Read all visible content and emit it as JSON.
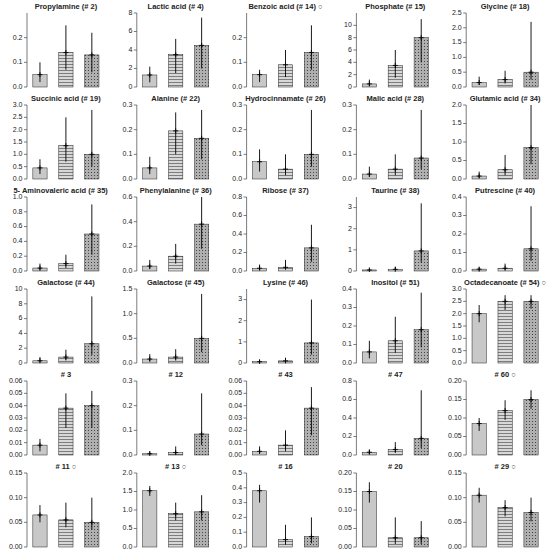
{
  "chart_data": [
    {
      "type": "bar",
      "title": "Propylamine (# 2)",
      "categories": [
        null,
        null,
        null
      ],
      "values": [
        0.05,
        0.14,
        0.13
      ],
      "lo": [
        0.02,
        0.07,
        0.06
      ],
      "hi": [
        0.1,
        0.25,
        0.22
      ],
      "colors": [
        "#c8c8c8",
        "#d8d8d8",
        "#b0b0b0"
      ],
      "ylim": [
        0,
        0.3
      ],
      "yticks": [
        {
          "value": 0,
          "label": "0.0"
        },
        0.1,
        0.2
      ],
      "tick_labels": "y"
    },
    {
      "type": "bar",
      "title": "Lactic acid (# 4)",
      "categories": [
        null,
        null,
        null
      ],
      "values": [
        1.3,
        3.5,
        4.5
      ],
      "lo": [
        0.5,
        1.5,
        2.0
      ],
      "hi": [
        2.2,
        5.2,
        7.5
      ],
      "colors": [
        "#c8c8c8",
        "#d8d8d8",
        "#b0b0b0"
      ],
      "ylim": [
        0,
        8
      ],
      "yticks": [
        0,
        2,
        4,
        6,
        8
      ],
      "tick_labels": "y"
    },
    {
      "type": "bar",
      "title": "Benzoic acid (# 14) ○",
      "categories": [
        null,
        null,
        null
      ],
      "values": [
        0.05,
        0.09,
        0.14
      ],
      "lo": [
        0.02,
        0.04,
        0.07
      ],
      "hi": [
        0.07,
        0.15,
        0.25
      ],
      "colors": [
        "#c8c8c8",
        "#d8d8d8",
        "#b0b0b0"
      ],
      "ylim": [
        0,
        0.3
      ],
      "yticks": [
        {
          "value": 0,
          "label": "0.0"
        },
        0.1,
        0.2
      ],
      "tick_labels": "y"
    },
    {
      "type": "bar",
      "title": "Phosphate (# 15)",
      "categories": [
        null,
        null,
        null
      ],
      "values": [
        0.5,
        3.5,
        8.0
      ],
      "lo": [
        0.2,
        1.5,
        4.0
      ],
      "hi": [
        1.2,
        6.0,
        11.0
      ],
      "colors": [
        "#c8c8c8",
        "#d8d8d8",
        "#b0b0b0"
      ],
      "ylim": [
        0,
        12
      ],
      "yticks": [
        0,
        2,
        4,
        6,
        8,
        10
      ],
      "tick_labels": "y"
    },
    {
      "type": "bar",
      "title": "Glycine (# 18)",
      "categories": [
        null,
        null,
        null
      ],
      "values": [
        0.15,
        0.25,
        0.5
      ],
      "lo": [
        0.07,
        0.12,
        0.25
      ],
      "hi": [
        0.35,
        0.55,
        2.2
      ],
      "colors": [
        "#c8c8c8",
        "#d8d8d8",
        "#b0b0b0"
      ],
      "ylim": [
        0,
        2.5
      ],
      "yticks": [
        {
          "value": 0,
          "label": "0.0"
        },
        0.5,
        {
          "value": 1.0,
          "label": "1.0"
        },
        1.5,
        {
          "value": 2.0,
          "label": "2.0"
        },
        2.5
      ],
      "tick_labels": "y"
    },
    {
      "type": "bar",
      "title": "Succinic acid (# 19)",
      "categories": [
        null,
        null,
        null
      ],
      "values": [
        0.45,
        1.35,
        1.0
      ],
      "lo": [
        0.2,
        0.7,
        0.5
      ],
      "hi": [
        0.8,
        2.5,
        2.8
      ],
      "colors": [
        "#c8c8c8",
        "#d8d8d8",
        "#b0b0b0"
      ],
      "ylim": [
        0,
        3.0
      ],
      "yticks": [
        {
          "value": 0,
          "label": "0.0"
        },
        0.5,
        {
          "value": 1.0,
          "label": "1.0"
        },
        1.5,
        {
          "value": 2.0,
          "label": "2.0"
        },
        2.5,
        {
          "value": 3.0,
          "label": "3.0"
        }
      ],
      "tick_labels": "y"
    },
    {
      "type": "bar",
      "title": "Alanine (# 22)",
      "categories": [
        null,
        null,
        null
      ],
      "values": [
        0.045,
        0.195,
        0.165
      ],
      "lo": [
        0.02,
        0.1,
        0.08
      ],
      "hi": [
        0.09,
        0.27,
        0.28
      ],
      "colors": [
        "#c8c8c8",
        "#d8d8d8",
        "#b0b0b0"
      ],
      "ylim": [
        0,
        0.3
      ],
      "yticks": [
        {
          "value": 0,
          "label": "0.0"
        },
        0.1,
        0.2,
        0.3
      ],
      "tick_labels": "y"
    },
    {
      "type": "bar",
      "title": "Hydrocinnamate (# 26)",
      "categories": [
        null,
        null,
        null
      ],
      "values": [
        0.07,
        0.04,
        0.1
      ],
      "lo": [
        0.03,
        0.015,
        0.05
      ],
      "hi": [
        0.12,
        0.1,
        0.28
      ],
      "colors": [
        "#c8c8c8",
        "#d8d8d8",
        "#b0b0b0"
      ],
      "ylim": [
        0,
        0.3
      ],
      "yticks": [
        {
          "value": 0,
          "label": "0.0"
        },
        0.1,
        0.2,
        0.3
      ],
      "tick_labels": "y"
    },
    {
      "type": "bar",
      "title": "Malic acid (# 28)",
      "categories": [
        null,
        null,
        null
      ],
      "values": [
        0.02,
        0.04,
        0.085
      ],
      "lo": [
        0.008,
        0.015,
        0.04
      ],
      "hi": [
        0.05,
        0.1,
        0.28
      ],
      "colors": [
        "#c8c8c8",
        "#d8d8d8",
        "#b0b0b0"
      ],
      "ylim": [
        0,
        0.3
      ],
      "yticks": [
        {
          "value": 0,
          "label": "0.0"
        },
        0.1,
        0.2,
        0.3
      ],
      "tick_labels": "y"
    },
    {
      "type": "bar",
      "title": "Glutamic acid (# 34)",
      "categories": [
        null,
        null,
        null
      ],
      "values": [
        0.08,
        0.25,
        0.85
      ],
      "lo": [
        0.03,
        0.1,
        0.4
      ],
      "hi": [
        0.2,
        0.65,
        2.0
      ],
      "colors": [
        "#c8c8c8",
        "#d8d8d8",
        "#b0b0b0"
      ],
      "ylim": [
        0,
        2.0
      ],
      "yticks": [
        {
          "value": 0,
          "label": "0.0"
        },
        0.5,
        {
          "value": 1.0,
          "label": "1.0"
        },
        1.5,
        {
          "value": 2.0,
          "label": "2.0"
        }
      ],
      "tick_labels": "y"
    },
    {
      "type": "bar",
      "title": "5- Aminovaleric acid (# 35)",
      "categories": [
        null,
        null,
        null
      ],
      "values": [
        0.04,
        0.1,
        0.5
      ],
      "lo": [
        0.01,
        0.04,
        0.22
      ],
      "hi": [
        0.1,
        0.22,
        0.9
      ],
      "colors": [
        "#c8c8c8",
        "#d8d8d8",
        "#b0b0b0"
      ],
      "ylim": [
        0,
        1.0
      ],
      "yticks": [
        {
          "value": 0,
          "label": "0.0"
        },
        0.2,
        0.4,
        0.6,
        0.8,
        {
          "value": 1.0,
          "label": "1.0"
        }
      ],
      "tick_labels": "y"
    },
    {
      "type": "bar",
      "title": "Phenylalanine (# 36)",
      "categories": [
        null,
        null,
        null
      ],
      "values": [
        0.04,
        0.12,
        0.38
      ],
      "lo": [
        0.015,
        0.06,
        0.18
      ],
      "hi": [
        0.09,
        0.22,
        0.6
      ],
      "colors": [
        "#c8c8c8",
        "#d8d8d8",
        "#b0b0b0"
      ],
      "ylim": [
        0,
        0.6
      ],
      "yticks": [
        {
          "value": 0,
          "label": "0.0"
        },
        0.2,
        0.4,
        0.6
      ],
      "tick_labels": "y"
    },
    {
      "type": "bar",
      "title": "Ribose (# 37)",
      "categories": [
        null,
        null,
        null
      ],
      "values": [
        0.03,
        0.04,
        0.25
      ],
      "lo": [
        0.01,
        0.02,
        0.1
      ],
      "hi": [
        0.07,
        0.12,
        0.5
      ],
      "colors": [
        "#c8c8c8",
        "#d8d8d8",
        "#b0b0b0"
      ],
      "ylim": [
        0,
        0.8
      ],
      "yticks": [
        {
          "value": 0,
          "label": "0.0"
        },
        0.2,
        0.4,
        0.6,
        0.8
      ],
      "tick_labels": "y"
    },
    {
      "type": "bar",
      "title": "Taurine (# 38)",
      "categories": [
        null,
        null,
        null
      ],
      "values": [
        0.05,
        0.08,
        0.95
      ],
      "lo": [
        0.02,
        0.03,
        0.4
      ],
      "hi": [
        0.12,
        0.2,
        3.2
      ],
      "colors": [
        "#c8c8c8",
        "#d8d8d8",
        "#b0b0b0"
      ],
      "ylim": [
        0,
        3.5
      ],
      "yticks": [
        0,
        1,
        2,
        3
      ],
      "tick_labels": "y"
    },
    {
      "type": "bar",
      "title": "Putrescine (# 40)",
      "categories": [
        null,
        null,
        null
      ],
      "values": [
        0.01,
        0.015,
        0.12
      ],
      "lo": [
        0.003,
        0.006,
        0.055
      ],
      "hi": [
        0.02,
        0.04,
        0.35
      ],
      "colors": [
        "#c8c8c8",
        "#d8d8d8",
        "#b0b0b0"
      ],
      "ylim": [
        0,
        0.4
      ],
      "yticks": [
        {
          "value": 0,
          "label": "0.0"
        },
        0.1,
        0.2,
        0.3,
        0.4
      ],
      "tick_labels": "y"
    },
    {
      "type": "bar",
      "title": "Galactose (# 44)",
      "categories": [
        null,
        null,
        null
      ],
      "values": [
        0.3,
        0.8,
        2.6
      ],
      "lo": [
        0.1,
        0.35,
        1.1
      ],
      "hi": [
        0.8,
        1.8,
        9.0
      ],
      "colors": [
        "#c8c8c8",
        "#d8d8d8",
        "#b0b0b0"
      ],
      "ylim": [
        0,
        10
      ],
      "yticks": [
        0,
        2,
        4,
        6,
        8,
        10
      ],
      "tick_labels": "y"
    },
    {
      "type": "bar",
      "title": "Galactose (# 45)",
      "categories": [
        null,
        null,
        null
      ],
      "values": [
        0.08,
        0.12,
        0.5
      ],
      "lo": [
        0.03,
        0.05,
        0.22
      ],
      "hi": [
        0.18,
        0.28,
        1.4
      ],
      "colors": [
        "#c8c8c8",
        "#d8d8d8",
        "#b0b0b0"
      ],
      "ylim": [
        0,
        1.5
      ],
      "yticks": [
        {
          "value": 0,
          "label": "0.0"
        },
        0.5,
        {
          "value": 1.0,
          "label": "1.0"
        },
        1.5
      ],
      "tick_labels": "y"
    },
    {
      "type": "bar",
      "title": "Lysine (# 46)",
      "categories": [
        null,
        null,
        null
      ],
      "values": [
        0.06,
        0.1,
        0.95
      ],
      "lo": [
        0.02,
        0.04,
        0.4
      ],
      "hi": [
        0.14,
        0.25,
        3.0
      ],
      "colors": [
        "#c8c8c8",
        "#d8d8d8",
        "#b0b0b0"
      ],
      "ylim": [
        0,
        3.5
      ],
      "yticks": [
        0,
        1,
        2,
        3
      ],
      "tick_labels": "y"
    },
    {
      "type": "bar",
      "title": "Inositol (# 51)",
      "categories": [
        null,
        null,
        null
      ],
      "values": [
        0.06,
        0.12,
        0.18
      ],
      "lo": [
        0.025,
        0.055,
        0.085
      ],
      "hi": [
        0.12,
        0.25,
        0.38
      ],
      "colors": [
        "#c8c8c8",
        "#d8d8d8",
        "#b0b0b0"
      ],
      "ylim": [
        0,
        0.4
      ],
      "yticks": [
        {
          "value": 0,
          "label": "0.0"
        },
        0.1,
        0.2,
        0.3,
        0.4
      ],
      "tick_labels": "y"
    },
    {
      "type": "bar",
      "title": "Octadecanoate (# 54) ○",
      "categories": [
        null,
        null,
        null
      ],
      "values": [
        2.0,
        2.5,
        2.5
      ],
      "lo": [
        1.65,
        2.15,
        2.2
      ],
      "hi": [
        2.35,
        2.75,
        2.75
      ],
      "colors": [
        "#c8c8c8",
        "#d8d8d8",
        "#b0b0b0"
      ],
      "ylim": [
        0,
        3.0
      ],
      "yticks": [
        {
          "value": 0,
          "label": "0.0"
        },
        0.5,
        {
          "value": 1.0,
          "label": "1.0"
        },
        1.5,
        {
          "value": 2.0,
          "label": "2.0"
        },
        2.5,
        {
          "value": 3.0,
          "label": "3.0"
        }
      ],
      "tick_labels": "y"
    },
    {
      "type": "bar",
      "title": "# 3",
      "categories": [
        null,
        null,
        null
      ],
      "values": [
        0.008,
        0.038,
        0.04
      ],
      "lo": [
        0.003,
        0.022,
        0.022
      ],
      "hi": [
        0.013,
        0.05,
        0.052
      ],
      "colors": [
        "#c8c8c8",
        "#d8d8d8",
        "#b0b0b0"
      ],
      "ylim": [
        0,
        0.06
      ],
      "yticks": [
        {
          "value": 0,
          "label": "0.00"
        },
        0.01,
        0.02,
        0.03,
        0.04,
        0.05,
        0.06
      ],
      "tick_labels": "y"
    },
    {
      "type": "bar",
      "title": "# 12",
      "categories": [
        null,
        null,
        null
      ],
      "values": [
        0.005,
        0.01,
        0.085
      ],
      "lo": [
        0.002,
        0.004,
        0.04
      ],
      "hi": [
        0.015,
        0.035,
        0.25
      ],
      "colors": [
        "#c8c8c8",
        "#d8d8d8",
        "#b0b0b0"
      ],
      "ylim": [
        0,
        0.3
      ],
      "yticks": [
        {
          "value": 0,
          "label": "0.0"
        },
        0.1,
        0.2,
        0.3
      ],
      "tick_labels": "y"
    },
    {
      "type": "bar",
      "title": "# 43",
      "categories": [
        null,
        null,
        null
      ],
      "values": [
        0.003,
        0.008,
        0.038
      ],
      "lo": [
        0.001,
        0.003,
        0.016
      ],
      "hi": [
        0.007,
        0.02,
        0.055
      ],
      "colors": [
        "#c8c8c8",
        "#d8d8d8",
        "#b0b0b0"
      ],
      "ylim": [
        0,
        0.06
      ],
      "yticks": [
        {
          "value": 0,
          "label": "0.00"
        },
        0.01,
        0.02,
        0.03,
        0.04,
        0.05,
        0.06
      ],
      "tick_labels": "y"
    },
    {
      "type": "bar",
      "title": "# 47",
      "categories": [
        null,
        null,
        null
      ],
      "values": [
        0.03,
        0.06,
        0.18
      ],
      "lo": [
        0.01,
        0.022,
        0.075
      ],
      "hi": [
        0.06,
        0.14,
        0.7
      ],
      "colors": [
        "#c8c8c8",
        "#d8d8d8",
        "#b0b0b0"
      ],
      "ylim": [
        0,
        0.8
      ],
      "yticks": [
        {
          "value": 0,
          "label": "0.0"
        },
        0.2,
        0.4,
        0.6,
        0.8
      ],
      "tick_labels": "y"
    },
    {
      "type": "bar",
      "title": "# 60 ○",
      "categories": [
        null,
        null,
        null
      ],
      "values": [
        0.085,
        0.12,
        0.15
      ],
      "lo": [
        0.065,
        0.095,
        0.125
      ],
      "hi": [
        0.1,
        0.148,
        0.175
      ],
      "colors": [
        "#c8c8c8",
        "#d8d8d8",
        "#b0b0b0"
      ],
      "ylim": [
        0,
        0.2
      ],
      "yticks": [
        {
          "value": 0,
          "label": "0.00"
        },
        0.05,
        {
          "value": 0.1,
          "label": "0.10"
        },
        0.15,
        {
          "value": 0.2,
          "label": "0.20"
        }
      ],
      "tick_labels": "y"
    },
    {
      "type": "bar",
      "title": "# 11 ○",
      "categories": [
        null,
        null,
        null
      ],
      "values": [
        0.065,
        0.055,
        0.05
      ],
      "lo": [
        0.05,
        0.04,
        0.035
      ],
      "hi": [
        0.085,
        0.09,
        0.1
      ],
      "colors": [
        "#c8c8c8",
        "#d8d8d8",
        "#b0b0b0"
      ],
      "ylim": [
        0,
        0.15
      ],
      "yticks": [
        {
          "value": 0,
          "label": "0.00"
        },
        0.05,
        {
          "value": 0.1,
          "label": "0.10"
        },
        0.15
      ],
      "tick_labels": "y"
    },
    {
      "type": "bar",
      "title": "# 13 ○",
      "categories": [
        null,
        null,
        null
      ],
      "values": [
        1.52,
        0.9,
        0.95
      ],
      "lo": [
        1.38,
        0.72,
        0.72
      ],
      "hi": [
        1.65,
        1.2,
        1.4
      ],
      "colors": [
        "#c8c8c8",
        "#d8d8d8",
        "#b0b0b0"
      ],
      "ylim": [
        0,
        2.0
      ],
      "yticks": [
        {
          "value": 0,
          "label": "0.0"
        },
        0.5,
        {
          "value": 1.0,
          "label": "1.0"
        },
        1.5,
        {
          "value": 2.0,
          "label": "2.0"
        }
      ],
      "tick_labels": "y"
    },
    {
      "type": "bar",
      "title": "# 16",
      "categories": [
        null,
        null,
        null
      ],
      "values": [
        0.38,
        0.05,
        0.07
      ],
      "lo": [
        0.3,
        0.015,
        0.025
      ],
      "hi": [
        0.42,
        0.15,
        0.2
      ],
      "colors": [
        "#c8c8c8",
        "#d8d8d8",
        "#b0b0b0"
      ],
      "ylim": [
        0,
        0.5
      ],
      "yticks": [
        {
          "value": 0,
          "label": "0.0"
        },
        0.1,
        0.2,
        0.3,
        0.4,
        0.5
      ],
      "tick_labels": "y"
    },
    {
      "type": "bar",
      "title": "# 20",
      "categories": [
        null,
        null,
        null
      ],
      "values": [
        0.15,
        0.025,
        0.025
      ],
      "lo": [
        0.12,
        0.008,
        0.008
      ],
      "hi": [
        0.175,
        0.08,
        0.07
      ],
      "colors": [
        "#c8c8c8",
        "#d8d8d8",
        "#b0b0b0"
      ],
      "ylim": [
        0,
        0.2
      ],
      "yticks": [
        {
          "value": 0,
          "label": "0.00"
        },
        0.05,
        {
          "value": 0.1,
          "label": "0.10"
        },
        0.15,
        {
          "value": 0.2,
          "label": "0.20"
        }
      ],
      "tick_labels": "y"
    },
    {
      "type": "bar",
      "title": "# 29 ○",
      "categories": [
        null,
        null,
        null
      ],
      "values": [
        0.105,
        0.08,
        0.07
      ],
      "lo": [
        0.09,
        0.062,
        0.052
      ],
      "hi": [
        0.12,
        0.095,
        0.1
      ],
      "colors": [
        "#c8c8c8",
        "#d8d8d8",
        "#b0b0b0"
      ],
      "ylim": [
        0,
        0.15
      ],
      "yticks": [
        {
          "value": 0,
          "label": "0.00"
        },
        0.05,
        {
          "value": 0.1,
          "label": "0.10"
        },
        0.15
      ],
      "tick_labels": "y"
    }
  ]
}
